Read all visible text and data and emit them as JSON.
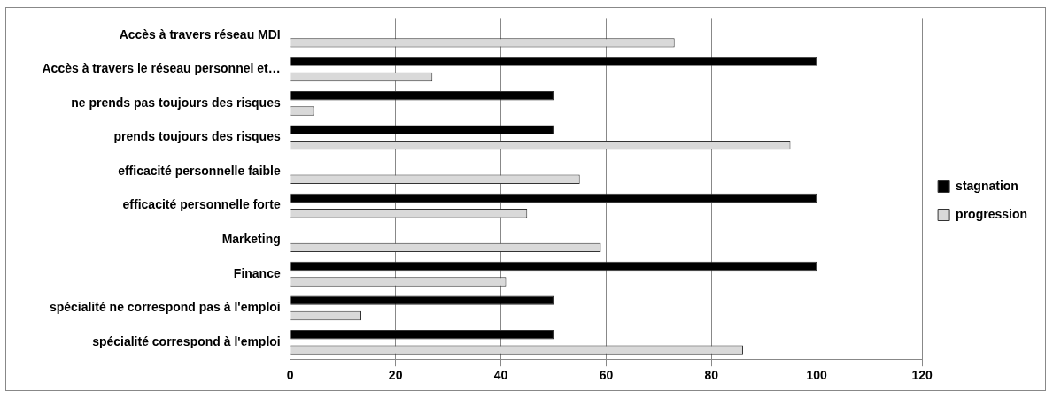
{
  "chart_data": {
    "type": "bar",
    "orientation": "horizontal",
    "categories": [
      "Accès à travers réseau MDI",
      "Accès à travers le réseau personnel et…",
      "ne prends pas toujours des risques",
      "prends toujours des risques",
      "efficacité personnelle faible",
      "efficacité personnelle forte",
      "Marketing",
      "Finance",
      "spécialité ne correspond pas à l'emploi",
      "spécialité correspond à l'emploi"
    ],
    "series": [
      {
        "name": "stagnation",
        "color": "#000000",
        "values": [
          0,
          100,
          50,
          50,
          0,
          100,
          0,
          100,
          50,
          50
        ]
      },
      {
        "name": "progression",
        "color": "#d9d9d9",
        "values": [
          73,
          27,
          4.5,
          95,
          55,
          45,
          59,
          41,
          13.5,
          86
        ]
      }
    ],
    "xlim": [
      0,
      120
    ],
    "xticks": [
      0,
      20,
      40,
      60,
      80,
      100,
      120
    ],
    "grid": "x",
    "legend": "right"
  }
}
